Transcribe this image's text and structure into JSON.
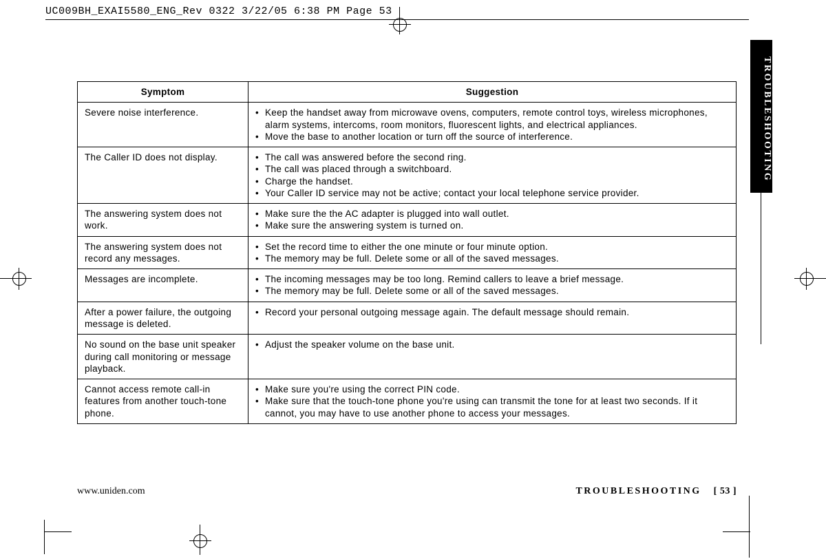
{
  "header_line": "UC009BH_EXAI5580_ENG_Rev 0322  3/22/05  6:38 PM  Page 53",
  "side_tab": "TROUBLESHOOTING",
  "table": {
    "headers": {
      "symptom": "Symptom",
      "suggestion": "Suggestion"
    },
    "rows": [
      {
        "symptom": "Severe noise interference.",
        "suggestions": [
          "Keep the handset away from microwave ovens, computers, remote control toys, wireless microphones, alarm systems, intercoms, room monitors, fluorescent lights, and electrical appliances.",
          "Move the base to another location or turn off the source of interference."
        ]
      },
      {
        "symptom": "The Caller ID does not display.",
        "suggestions": [
          "The call was answered before the second ring.",
          "The call was placed through a switchboard.",
          "Charge the handset.",
          "Your Caller ID service may not be active; contact your local telephone service provider."
        ]
      },
      {
        "symptom": "The answering system does not work.",
        "suggestions": [
          "Make sure the the AC adapter is plugged into wall outlet.",
          "Make sure the answering system is turned on."
        ]
      },
      {
        "symptom": "The answering system does not record any messages.",
        "suggestions": [
          "Set the record time to either the one minute or four minute option.",
          "The memory may be full. Delete some or all of the saved messages."
        ]
      },
      {
        "symptom": "Messages are incomplete.",
        "suggestions": [
          "The incoming messages may be too long. Remind callers to leave a brief message.",
          "The memory may be full. Delete some or all of the saved messages."
        ]
      },
      {
        "symptom": "After a power failure, the outgoing message is deleted.",
        "suggestions": [
          "Record your personal outgoing message again. The default message should remain."
        ]
      },
      {
        "symptom": "No sound on the base unit speaker during call monitoring or message playback.",
        "suggestions": [
          "Adjust the speaker volume on the base unit."
        ]
      },
      {
        "symptom": "Cannot access remote call-in features from another touch-tone phone.",
        "suggestions": [
          "Make sure you're using the correct PIN code.",
          "Make sure that the touch-tone phone you're using can transmit the tone for at least two seconds. If it cannot, you may have to use another phone to access your messages."
        ]
      }
    ]
  },
  "footer": {
    "url": "www.uniden.com",
    "section": "TROUBLESHOOTING",
    "page": "[ 53 ]"
  }
}
